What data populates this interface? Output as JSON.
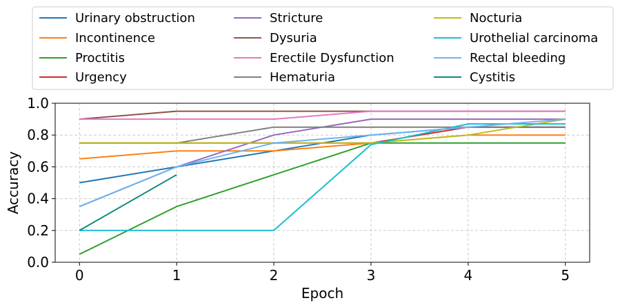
{
  "chart_data": {
    "type": "line",
    "title": "",
    "xlabel": "Epoch",
    "ylabel": "Accuracy",
    "xlim": [
      -0.25,
      5.25
    ],
    "ylim": [
      0.0,
      1.0
    ],
    "xticks": [
      0,
      1,
      2,
      3,
      4,
      5
    ],
    "xtick_labels": [
      "0",
      "1",
      "2",
      "3",
      "4",
      "5"
    ],
    "yticks": [
      0.0,
      0.2,
      0.4,
      0.6,
      0.8,
      1.0
    ],
    "ytick_labels": [
      "0.0",
      "0.2",
      "0.4",
      "0.6",
      "0.8",
      "1.0"
    ],
    "grid": true,
    "legend_position": "top (above plot), 3 columns",
    "series": [
      {
        "name": "Urinary obstruction",
        "color": "#1f77b4",
        "x": [
          0,
          1,
          2,
          3,
          4,
          5
        ],
        "y": [
          0.5,
          0.6,
          0.7,
          0.8,
          0.85,
          0.85
        ]
      },
      {
        "name": "Incontinence",
        "color": "#ff7f0e",
        "x": [
          0,
          1,
          2,
          3,
          4,
          5
        ],
        "y": [
          0.65,
          0.7,
          0.7,
          0.75,
          0.8,
          0.8
        ]
      },
      {
        "name": "Proctitis",
        "color": "#2ca02c",
        "x": [
          0,
          1,
          2,
          3,
          4,
          5
        ],
        "y": [
          0.05,
          0.35,
          0.55,
          0.75,
          0.75,
          0.75
        ]
      },
      {
        "name": "Urgency",
        "color": "#d62728",
        "x": [
          0,
          1,
          2,
          3,
          4,
          5
        ],
        "y": [
          0.75,
          0.75,
          0.75,
          0.75,
          0.85,
          0.85
        ]
      },
      {
        "name": "Stricture",
        "color": "#9467bd",
        "x": [
          0,
          1,
          2,
          3,
          4,
          5
        ],
        "y": [
          0.35,
          0.6,
          0.8,
          0.9,
          0.9,
          0.9
        ]
      },
      {
        "name": "Dysuria",
        "color": "#8c564b",
        "x": [
          0,
          1,
          2,
          3,
          4,
          5
        ],
        "y": [
          0.9,
          0.95,
          0.95,
          0.95,
          0.95,
          0.95
        ]
      },
      {
        "name": "Erectile Dysfunction",
        "color": "#e377c2",
        "x": [
          0,
          1,
          2,
          3,
          4,
          5
        ],
        "y": [
          0.9,
          0.9,
          0.9,
          0.95,
          0.95,
          0.95
        ]
      },
      {
        "name": "Hematuria",
        "color": "#7f7f7f",
        "x": [
          0,
          1,
          2,
          3,
          4,
          5
        ],
        "y": [
          0.75,
          0.75,
          0.85,
          0.85,
          0.85,
          0.85
        ]
      },
      {
        "name": "Nocturia",
        "color": "#bcbd22",
        "x": [
          0,
          1,
          2,
          3,
          4,
          5
        ],
        "y": [
          0.75,
          0.75,
          0.75,
          0.75,
          0.8,
          0.9
        ]
      },
      {
        "name": "Urothelial carcinoma",
        "color": "#17becf",
        "x": [
          0,
          1,
          2,
          3,
          4,
          5
        ],
        "y": [
          0.2,
          0.2,
          0.2,
          0.74,
          0.87,
          0.87
        ]
      },
      {
        "name": "Rectal bleeding",
        "color": "#6fb3f0",
        "x": [
          0,
          1,
          2,
          3,
          4,
          5
        ],
        "y": [
          0.35,
          0.6,
          0.75,
          0.8,
          0.85,
          0.9
        ]
      },
      {
        "name": "Cystitis",
        "color": "#0e8a78",
        "x": [
          0,
          1
        ],
        "y": [
          0.2,
          0.55
        ]
      }
    ]
  }
}
